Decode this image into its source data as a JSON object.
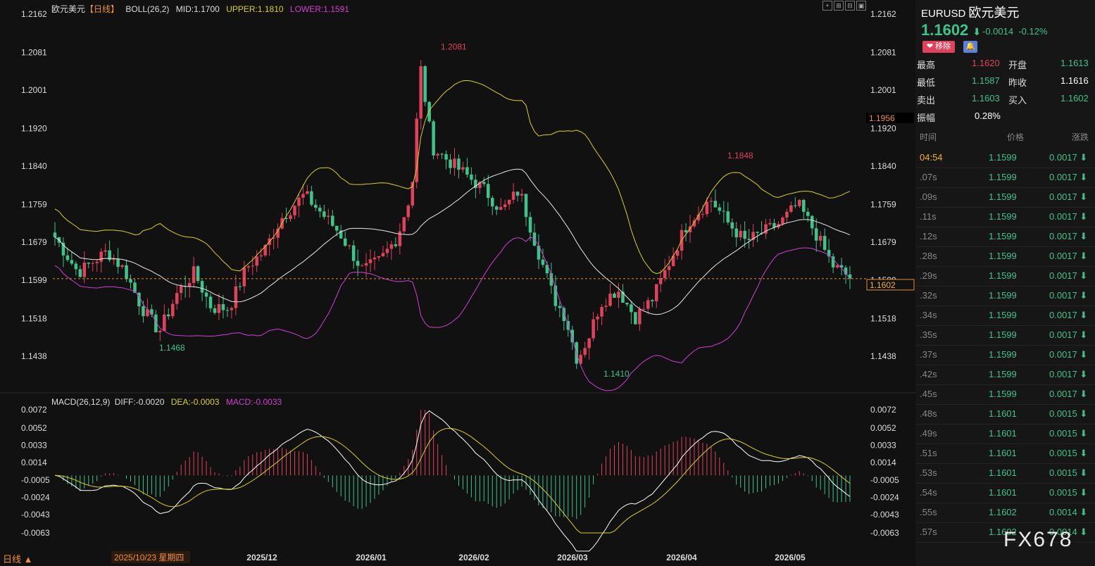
{
  "header": {
    "name": "欧元美元",
    "period": "【日线】",
    "boll": "BOLL(26,2)",
    "mid": "MID:1.1700",
    "upper": "UPPER:1.1810",
    "lower": "LOWER:1.1591"
  },
  "macd_legend": {
    "title": "MACD(26,12,9)",
    "diff": "DIFF:-0.0020",
    "dea": "DEA:-0.0003",
    "macd": "MACD:-0.0033"
  },
  "price_axis": [
    "1.2162",
    "1.2081",
    "1.2001",
    "1.1920",
    "1.1840",
    "1.1759",
    "1.1679",
    "1.1599",
    "1.1518",
    "1.1438"
  ],
  "macd_axis": [
    "0.0072",
    "0.0052",
    "0.0033",
    "0.0014",
    "-0.0005",
    "-0.0024",
    "-0.0043",
    "-0.0063"
  ],
  "date_axis": [
    "2025/12",
    "2026/01",
    "2026/02",
    "2026/03",
    "2026/04",
    "2026/05"
  ],
  "cursor_date": "2025/10/23 星期四",
  "period_button": "日线 ▲",
  "extremes": {
    "high": "1.2081",
    "high2": "1.1848",
    "low": "1.1468",
    "low2": "1.1410"
  },
  "right_tags": {
    "hover": "1.1956",
    "current": "1.1602"
  },
  "chart_data": {
    "type": "candlestick",
    "x": [
      "2025-10-23",
      "2026-05-29"
    ],
    "ylim": [
      1.14,
      1.2162
    ],
    "macd_ylim": [
      -0.0082,
      0.0072
    ],
    "last": 1.1602,
    "indicators": [
      "BOLL(26,2)",
      "MACD(26,12,9)"
    ]
  },
  "quote": {
    "symbol": "EURUSD",
    "symbol_cn": "欧元美元",
    "price": "1.1602",
    "arrow": "⬇",
    "change": "-0.0014",
    "change_pct": "-0.12%",
    "remove_label": "❤ 移除",
    "bell": "🔔",
    "high_label": "最高",
    "high": "1.1620",
    "open_label": "开盘",
    "open": "1.1613",
    "low_label": "最低",
    "low": "1.1587",
    "prev_label": "昨收",
    "prev": "1.1616",
    "ask_label": "卖出",
    "ask": "1.1603",
    "bid_label": "买入",
    "bid": "1.1602",
    "amp_label": "振幅",
    "amp": "0.28%"
  },
  "ticks_header": {
    "time": "时间",
    "price": "价格",
    "change": "涨跌"
  },
  "ticks": [
    {
      "t": "04:54",
      "p": "1.1599",
      "c": "0.0017 ⬇"
    },
    {
      "t": ".07s",
      "p": "1.1599",
      "c": "0.0017 ⬇"
    },
    {
      "t": ".09s",
      "p": "1.1599",
      "c": "0.0017 ⬇"
    },
    {
      "t": ".11s",
      "p": "1.1599",
      "c": "0.0017 ⬇"
    },
    {
      "t": ".12s",
      "p": "1.1599",
      "c": "0.0017 ⬇"
    },
    {
      "t": ".28s",
      "p": "1.1599",
      "c": "0.0017 ⬇"
    },
    {
      "t": ".29s",
      "p": "1.1599",
      "c": "0.0017 ⬇"
    },
    {
      "t": ".32s",
      "p": "1.1599",
      "c": "0.0017 ⬇"
    },
    {
      "t": ".34s",
      "p": "1.1599",
      "c": "0.0017 ⬇"
    },
    {
      "t": ".35s",
      "p": "1.1599",
      "c": "0.0017 ⬇"
    },
    {
      "t": ".37s",
      "p": "1.1599",
      "c": "0.0017 ⬇"
    },
    {
      "t": ".42s",
      "p": "1.1599",
      "c": "0.0017 ⬇"
    },
    {
      "t": ".45s",
      "p": "1.1599",
      "c": "0.0017 ⬇"
    },
    {
      "t": ".48s",
      "p": "1.1601",
      "c": "0.0015 ⬇"
    },
    {
      "t": ".49s",
      "p": "1.1601",
      "c": "0.0015 ⬇"
    },
    {
      "t": ".51s",
      "p": "1.1601",
      "c": "0.0015 ⬇"
    },
    {
      "t": ".53s",
      "p": "1.1601",
      "c": "0.0015 ⬇"
    },
    {
      "t": ".54s",
      "p": "1.1601",
      "c": "0.0015 ⬇"
    },
    {
      "t": ".55s",
      "p": "1.1602",
      "c": "0.0014 ⬇"
    },
    {
      "t": ".57s",
      "p": "1.1602",
      "c": "0.0014 ⬇"
    }
  ],
  "watermark": "FX678",
  "colors": {
    "up": "#e0415b",
    "down": "#3fc38b",
    "mid": "#e8e8e8",
    "upper": "#d8d020",
    "lower": "#d040d0",
    "dea": "#d8d020",
    "diff": "#ffffff"
  }
}
